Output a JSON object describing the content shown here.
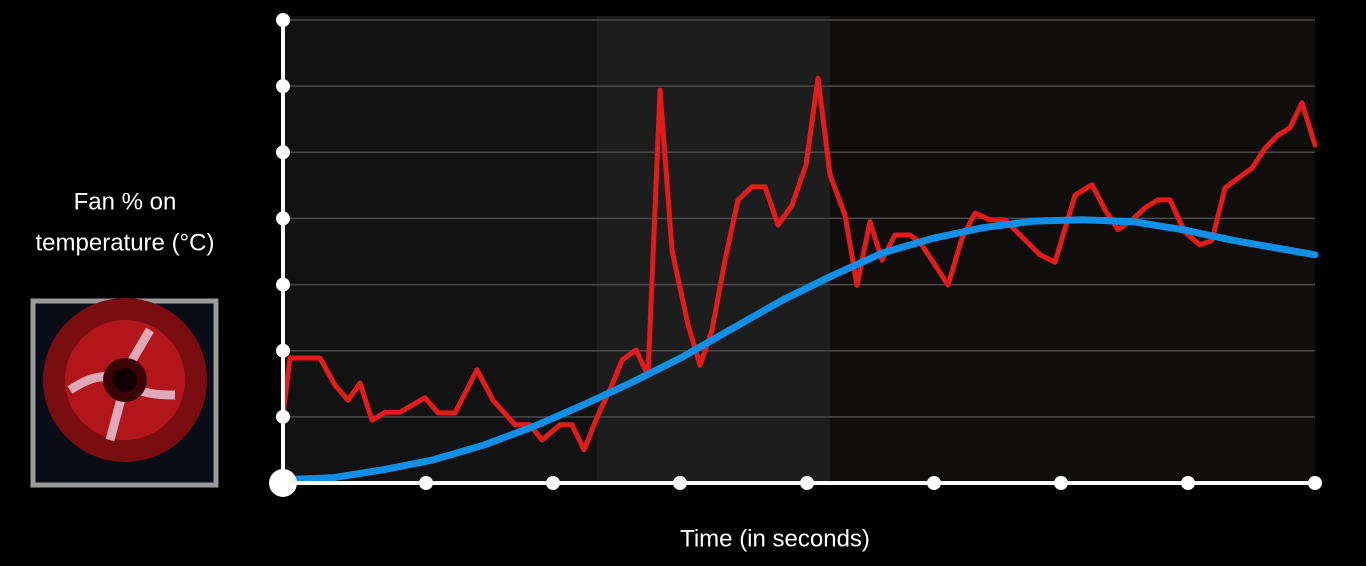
{
  "chart_data": {
    "type": "line",
    "y_label": [
      "Fan % on",
      "temperature (°C)"
    ],
    "x_label": "Time (in seconds)",
    "xlim": [
      0,
      1032
    ],
    "xticks": [
      0,
      143,
      270,
      397,
      524,
      651,
      778,
      905,
      1032
    ],
    "ylim": [
      0,
      7
    ],
    "yticks": [
      0,
      1,
      2,
      3,
      4,
      5,
      6,
      7
    ],
    "grid": true,
    "series": [
      {
        "color": "#e31b1b",
        "x": [
          0,
          7,
          37,
          52,
          65,
          77,
          89,
          102,
          117,
          142,
          155,
          172,
          194,
          210,
          232,
          247,
          259,
          277,
          289,
          301,
          315,
          327,
          339,
          353,
          365,
          377,
          389,
          405,
          417,
          429,
          442,
          455,
          469,
          482,
          495,
          509,
          523,
          535,
          547,
          562,
          574,
          587,
          599,
          612,
          627,
          637,
          652,
          665,
          679,
          692,
          707,
          722,
          737,
          757,
          772,
          792,
          809,
          822,
          835,
          849,
          862,
          875,
          887,
          902,
          917,
          929,
          942,
          955,
          969,
          982,
          995,
          1007,
          1019,
          1032
        ],
        "values": [
          1.03,
          1.89,
          1.89,
          1.48,
          1.25,
          1.51,
          0.95,
          1.07,
          1.07,
          1.29,
          1.06,
          1.06,
          1.71,
          1.25,
          0.88,
          0.88,
          0.65,
          0.88,
          0.88,
          0.5,
          1.03,
          1.41,
          1.86,
          2.01,
          1.63,
          5.94,
          3.52,
          2.39,
          1.78,
          2.31,
          3.37,
          4.28,
          4.48,
          4.48,
          3.9,
          4.2,
          4.81,
          6.12,
          4.66,
          4.05,
          2.99,
          3.95,
          3.37,
          3.75,
          3.75,
          3.64,
          3.3,
          2.99,
          3.7,
          4.08,
          3.98,
          3.98,
          3.75,
          3.45,
          3.34,
          4.35,
          4.51,
          4.13,
          3.83,
          3.98,
          4.16,
          4.28,
          4.28,
          3.79,
          3.6,
          3.67,
          4.46,
          4.61,
          4.76,
          5.06,
          5.26,
          5.37,
          5.75,
          5.11
        ]
      },
      {
        "color": "#0f8fe6",
        "x": [
          0,
          50,
          100,
          150,
          200,
          250,
          300,
          350,
          400,
          450,
          500,
          550,
          600,
          650,
          700,
          750,
          800,
          850,
          900,
          950,
          1032
        ],
        "values": [
          0.05,
          0.08,
          0.2,
          0.35,
          0.57,
          0.85,
          1.18,
          1.53,
          1.91,
          2.34,
          2.77,
          3.14,
          3.48,
          3.7,
          3.86,
          3.96,
          3.98,
          3.95,
          3.83,
          3.67,
          3.45
        ]
      }
    ]
  }
}
